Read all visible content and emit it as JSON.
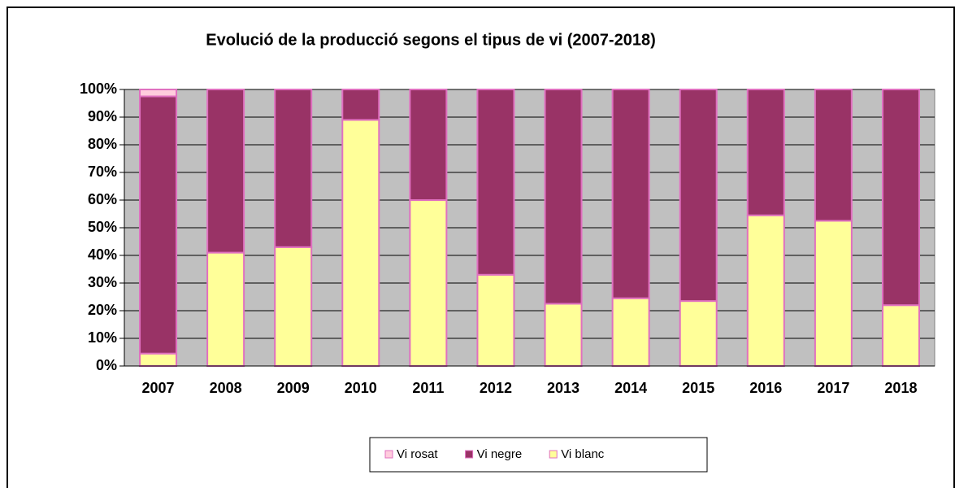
{
  "chart_data": {
    "type": "stacked_bar",
    "title": "Evolució de la producció segons el tipus de vi (2007-2018)",
    "categories": [
      "2007",
      "2008",
      "2009",
      "2010",
      "2011",
      "2012",
      "2013",
      "2014",
      "2015",
      "2016",
      "2017",
      "2018"
    ],
    "series": [
      {
        "name": "Vi rosat",
        "color": "#ffccdd",
        "values": [
          2.5,
          0,
          0,
          0,
          0,
          0,
          0,
          0,
          0,
          0,
          0,
          0
        ]
      },
      {
        "name": "Vi negre",
        "color": "#993366",
        "values": [
          93,
          59,
          57,
          11,
          40,
          67,
          77.5,
          75.5,
          76.5,
          45.5,
          47.5,
          78
        ]
      },
      {
        "name": "Vi blanc",
        "color": "#ffff99",
        "values": [
          4.5,
          41,
          43,
          89,
          60,
          33,
          22.5,
          24.5,
          23.5,
          54.5,
          52.5,
          22
        ]
      }
    ],
    "ylim": [
      0,
      100
    ],
    "yticks": [
      {
        "value": 0,
        "label": "0%"
      },
      {
        "value": 10,
        "label": "10%"
      },
      {
        "value": 20,
        "label": "20%"
      },
      {
        "value": 30,
        "label": "30%"
      },
      {
        "value": 40,
        "label": "40%"
      },
      {
        "value": 50,
        "label": "50%"
      },
      {
        "value": 60,
        "label": "60%"
      },
      {
        "value": 70,
        "label": "70%"
      },
      {
        "value": 80,
        "label": "80%"
      },
      {
        "value": 90,
        "label": "90%"
      },
      {
        "value": 100,
        "label": "100%"
      }
    ],
    "grid": true
  }
}
